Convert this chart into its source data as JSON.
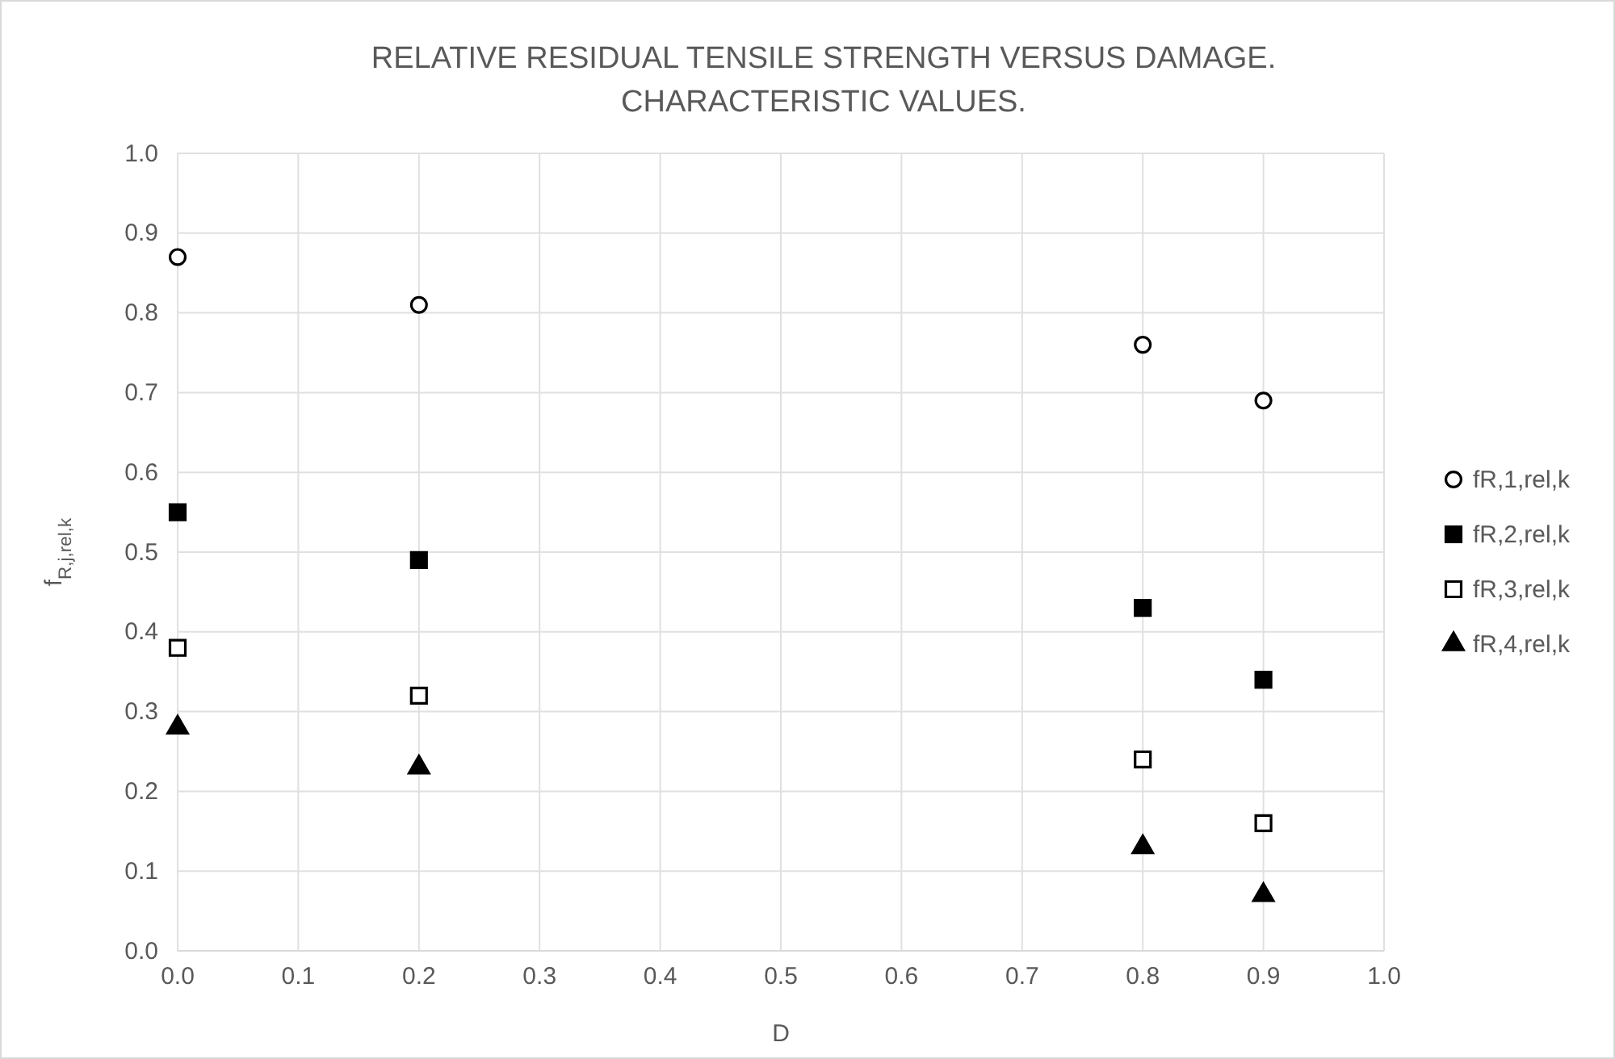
{
  "chart_data": {
    "type": "scatter",
    "title": "RELATIVE RESIDUAL TENSILE STRENGTH VERSUS DAMAGE.\nCHARACTERISTIC VALUES.",
    "xlabel": "D",
    "ylabel": "f$_{R,j,rel,k}$",
    "x": [
      0,
      0.2,
      0.8,
      0.9
    ],
    "series": [
      {
        "name": "fR,1,rel,k",
        "color": "#ffffff",
        "marker": "circle",
        "values": [
          0.87,
          0.81,
          0.76,
          0.69
        ]
      },
      {
        "name": "fR,2,rel,k",
        "color": "#000000",
        "marker": "square",
        "values": [
          0.55,
          0.49,
          0.43,
          0.34
        ]
      },
      {
        "name": "fR,3,rel,k",
        "color": "#ffffff",
        "marker": "square",
        "values": [
          0.38,
          0.32,
          0.24,
          0.16
        ]
      },
      {
        "name": "fR,4,rel,k",
        "color": "#000000",
        "marker": "triangle",
        "values": [
          0.28,
          0.23,
          0.13,
          0.07
        ]
      }
    ],
    "xlim": [
      0,
      1
    ],
    "xticks": [
      {
        "value": 0,
        "label": "0.0"
      },
      0.1,
      0.2,
      0.3,
      0.4,
      0.5,
      0.6,
      0.7,
      0.8,
      0.9,
      {
        "value": 1,
        "label": "1.0"
      }
    ],
    "ylim": [
      0,
      1
    ],
    "yticks": [
      {
        "value": 0,
        "label": "0.0"
      },
      0.1,
      0.2,
      0.3,
      0.4,
      0.5,
      0.6,
      0.7,
      0.8,
      0.9,
      {
        "value": 1,
        "label": "1.0"
      }
    ],
    "grid": true,
    "legend": "right"
  }
}
